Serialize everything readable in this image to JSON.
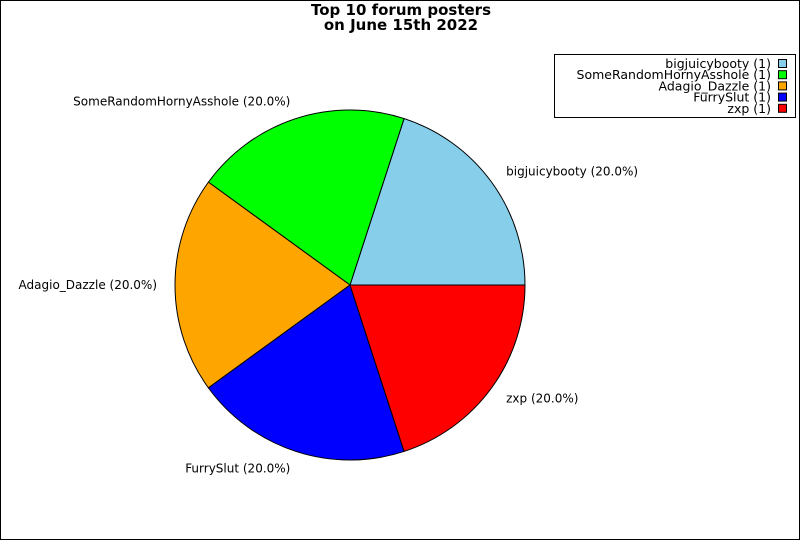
{
  "chart_data": {
    "type": "pie",
    "title": [
      "Top 10 forum posters",
      "on June 15th 2022"
    ],
    "slices": [
      {
        "label": "bigjuicybooty",
        "value": 1,
        "percent": "20.0%",
        "color": "#87ceeb"
      },
      {
        "label": "SomeRandomHornyAsshole",
        "value": 1,
        "percent": "20.0%",
        "color": "#00ff00"
      },
      {
        "label": "Adagio_Dazzle",
        "value": 1,
        "percent": "20.0%",
        "color": "#ffa500"
      },
      {
        "label": "FurrySlut",
        "value": 1,
        "percent": "20.0%",
        "color": "#0000ff"
      },
      {
        "label": "zxp",
        "value": 1,
        "percent": "20.0%",
        "color": "#ff0000"
      }
    ],
    "slice_labels": [
      "bigjuicybooty (20.0%)",
      "SomeRandomHornyAsshole (20.0%)",
      "Adagio_Dazzle (20.0%)",
      "FurrySlut (20.0%)",
      "zxp (20.0%)"
    ],
    "legend_entries": [
      "bigjuicybooty (1)",
      "SomeRandomHornyAsshole (1)",
      "Adagio_Dazzle (1)",
      "FurrySlut (1)",
      "zxp (1)"
    ],
    "legend_position": "top-right",
    "start_angle_deg": 0,
    "direction": "counterclockwise"
  }
}
